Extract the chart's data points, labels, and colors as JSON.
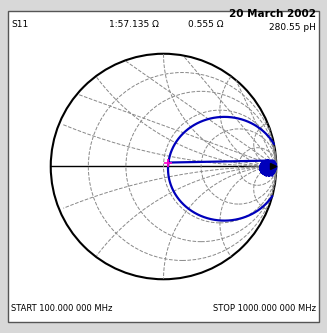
{
  "title_date": "20 March 2002",
  "label_s11": "S11",
  "label_impedance1": "1:57.135 Ω",
  "label_impedance2": "0.555 Ω",
  "label_inductance": "280.55 pH",
  "label_start": "START 100.000 000 MHz",
  "label_stop": "STOP 1000.000 000 MHz",
  "bg_color": "#d8d8d8",
  "chart_bg": "#ffffff",
  "border_color": "#555555",
  "smith_line_color": "#000000",
  "dashed_color": "#888888",
  "trace_color": "#0000bb",
  "marker_color_pink": "#ff00cc",
  "marker_color_black": "#000000",
  "figsize": [
    3.27,
    3.33
  ],
  "dpi": 100
}
